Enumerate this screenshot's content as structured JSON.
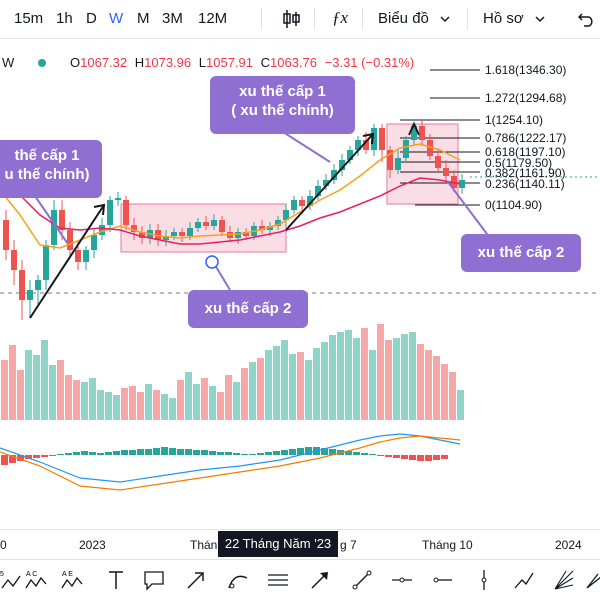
{
  "toolbar": {
    "intervals": [
      "15m",
      "1h",
      "D",
      "W",
      "M",
      "3M",
      "12M"
    ],
    "active_interval": "W",
    "chart_type_icon": "candles-icon",
    "indicators_icon": "fx-icon",
    "chart_menu_label": "Biểu đồ",
    "profile_label": "Hồ sơ"
  },
  "legend": {
    "interval": "W",
    "open_label": "O",
    "open": "1067.32",
    "high_label": "H",
    "high": "1073.96",
    "low_label": "L",
    "low": "1057.91",
    "close_label": "C",
    "close": "1063.76",
    "change": "−3.31 (−0.31%)"
  },
  "annotations": {
    "left_top": [
      "thế cấp 1",
      "u thế chính)"
    ],
    "middle_top": [
      "xu thế cấp 1",
      "( xu thế chính)"
    ],
    "middle_bottom": "xu thế cấp 2",
    "right_bottom": "xu thế cấp 2"
  },
  "fib_levels": [
    "1.618(1346.30)",
    "1.272(1294.68)",
    "1(1254.10)",
    "0.786(1222.17)",
    "0.618(1197.10)",
    "0.5(1179.50)",
    "0.382(1161.90)",
    "0.236(1140.11)",
    "0(1104.90)"
  ],
  "time_axis": {
    "labels": [
      "0",
      "2023",
      "Thán",
      "g 7",
      "Tháng 10",
      "2024"
    ],
    "crosshair_label": "22 Tháng Năm '23"
  },
  "colors": {
    "up": "#26a69a",
    "down": "#ef5350",
    "annotation": "#8f6fd1",
    "ma_orange": "#f7a21b",
    "ma_pink": "#e91e63",
    "accent": "#2962ff"
  },
  "drawing_tools": [
    "abcd-pattern-icon",
    "abcde-pattern-icon",
    "text-icon",
    "callout-icon",
    "arrow-icon",
    "curve-icon",
    "horizontal-lines-icon",
    "arrow-marker-icon",
    "trend-line-icon",
    "horizontal-ray-icon",
    "horizontal-line-icon",
    "vertical-line-icon",
    "path-icon",
    "fan-icon",
    "brush-icon"
  ]
}
